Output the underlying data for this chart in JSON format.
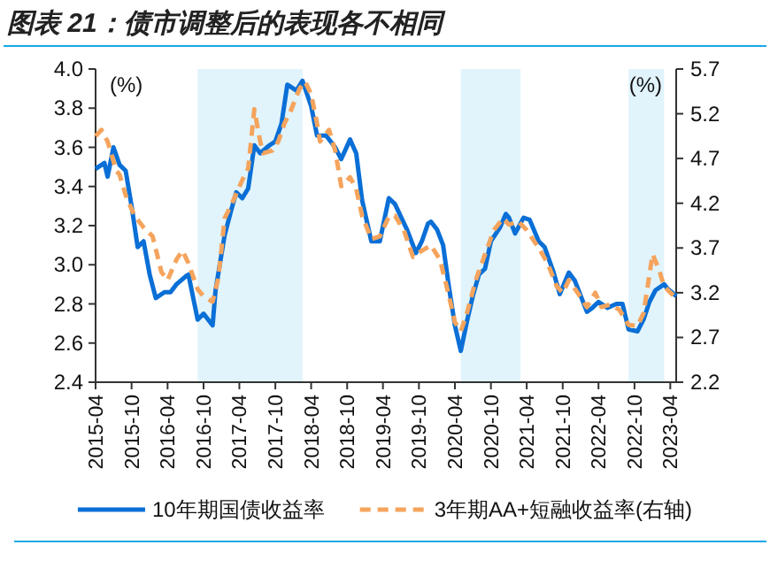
{
  "chart_data": {
    "type": "line",
    "title": "图表 21：债市调整后的表现各不相同",
    "ylabel": "(%)",
    "y2label": "(%)",
    "xlim": [
      "2015-04",
      "2023-05"
    ],
    "xticks": [
      "2015-04",
      "2015-10",
      "2016-04",
      "2016-10",
      "2017-04",
      "2017-10",
      "2018-04",
      "2018-10",
      "2019-04",
      "2019-10",
      "2020-04",
      "2020-10",
      "2021-04",
      "2021-10",
      "2022-04",
      "2022-10",
      "2023-04"
    ],
    "ylim": [
      2.4,
      4.0
    ],
    "yticks": [
      {
        "value": 2.4,
        "label": "2.4"
      },
      {
        "value": 2.6,
        "label": "2.6"
      },
      {
        "value": 2.8,
        "label": "2.8"
      },
      {
        "value": 3.0,
        "label": "3.0"
      },
      {
        "value": 3.2,
        "label": "3.2"
      },
      {
        "value": 3.4,
        "label": "3.4"
      },
      {
        "value": 3.6,
        "label": "3.6"
      },
      {
        "value": 3.8,
        "label": "3.8"
      },
      {
        "value": 4.0,
        "label": "4.0"
      }
    ],
    "y2lim": [
      2.2,
      5.7
    ],
    "y2ticks": [
      2.2,
      2.7,
      3.2,
      3.7,
      4.2,
      4.7,
      5.2,
      5.7
    ],
    "legend": "bottom",
    "grid": false,
    "line_style": "solid",
    "marker": "none",
    "bands": [
      {
        "axis": "x",
        "from": "2016-09-01",
        "to": "2018-02-16",
        "color": "#e1f4fc"
      },
      {
        "axis": "x",
        "from": "2020-05-01",
        "to": "2021-03-01",
        "color": "#e1f4fc"
      },
      {
        "axis": "x",
        "from": "2022-09-01",
        "to": "2023-03-01",
        "color": "#e1f4fc"
      }
    ],
    "series": [
      {
        "name": "10年期国债收益率",
        "color": "#0a6fd6",
        "x": [
          "2015-04-01",
          "2015-05-16",
          "2015-06-01",
          "2015-07-01",
          "2015-08-01",
          "2015-09-01",
          "2015-10-01",
          "2015-11-01",
          "2015-12-01",
          "2016-01-01",
          "2016-02-01",
          "2016-03-16",
          "2016-04-16",
          "2016-05-16",
          "2016-07-01",
          "2016-07-16",
          "2016-09-01",
          "2016-10-01",
          "2016-11-16",
          "2016-12-01",
          "2017-01-16",
          "2017-02-16",
          "2017-03-16",
          "2017-04-16",
          "2017-05-16",
          "2017-06-16",
          "2017-07-16",
          "2017-09-01",
          "2017-10-01",
          "2017-11-01",
          "2017-12-01",
          "2018-01-16",
          "2018-02-16",
          "2018-04-01",
          "2018-05-01",
          "2018-06-16",
          "2018-08-01",
          "2018-09-01",
          "2018-10-16",
          "2018-11-16",
          "2018-12-16",
          "2019-02-01",
          "2019-03-16",
          "2019-05-01",
          "2019-06-01",
          "2019-08-01",
          "2019-09-16",
          "2019-10-16",
          "2019-11-16",
          "2019-12-01",
          "2020-01-01",
          "2020-02-01",
          "2020-03-01",
          "2020-04-01",
          "2020-05-01",
          "2020-06-01",
          "2020-07-01",
          "2020-08-01",
          "2020-09-01",
          "2020-10-01",
          "2020-11-16",
          "2020-12-16",
          "2021-01-01",
          "2021-02-01",
          "2021-03-16",
          "2021-04-16",
          "2021-06-01",
          "2021-07-01",
          "2021-08-16",
          "2021-09-16",
          "2021-11-01",
          "2021-12-01",
          "2022-02-01",
          "2022-03-01",
          "2022-04-01",
          "2022-05-16",
          "2022-07-01",
          "2022-08-01",
          "2022-09-01",
          "2022-10-16",
          "2022-11-16",
          "2022-12-16",
          "2023-01-16",
          "2023-03-01",
          "2023-03-16",
          "2023-05-01"
        ],
        "values": [
          3.49,
          3.52,
          3.45,
          3.6,
          3.51,
          3.48,
          3.3,
          3.09,
          3.12,
          2.95,
          2.83,
          2.86,
          2.86,
          2.9,
          2.94,
          2.95,
          2.72,
          2.75,
          2.69,
          2.87,
          3.15,
          3.27,
          3.37,
          3.34,
          3.39,
          3.61,
          3.57,
          3.61,
          3.63,
          3.72,
          3.92,
          3.89,
          3.94,
          3.81,
          3.66,
          3.66,
          3.6,
          3.54,
          3.64,
          3.57,
          3.33,
          3.12,
          3.12,
          3.34,
          3.31,
          3.18,
          3.06,
          3.12,
          3.21,
          3.22,
          3.18,
          3.1,
          2.89,
          2.69,
          2.56,
          2.71,
          2.84,
          2.95,
          2.98,
          3.12,
          3.19,
          3.26,
          3.24,
          3.16,
          3.24,
          3.23,
          3.12,
          3.09,
          2.96,
          2.85,
          2.96,
          2.92,
          2.76,
          2.78,
          2.81,
          2.78,
          2.8,
          2.8,
          2.67,
          2.66,
          2.72,
          2.81,
          2.87,
          2.9,
          2.88,
          2.84
        ]
      },
      {
        "name": "3年期AA+短融收益率(右轴)",
        "color": "#f5a45d",
        "axis": "y2",
        "line_style": "dashed",
        "x": [
          "2015-04-01",
          "2015-05-01",
          "2015-06-01",
          "2015-07-16",
          "2015-08-01",
          "2015-09-01",
          "2015-10-16",
          "2015-12-01",
          "2016-01-16",
          "2016-03-01",
          "2016-04-01",
          "2016-05-16",
          "2016-06-16",
          "2016-07-16",
          "2016-09-01",
          "2016-10-01",
          "2016-11-16",
          "2016-12-16",
          "2017-01-16",
          "2017-03-01",
          "2017-04-16",
          "2017-05-16",
          "2017-06-16",
          "2017-07-16",
          "2017-08-01",
          "2017-09-16",
          "2017-10-16",
          "2017-11-16",
          "2017-12-16",
          "2018-02-01",
          "2018-03-01",
          "2018-04-01",
          "2018-05-01",
          "2018-05-16",
          "2018-07-01",
          "2018-08-01",
          "2018-09-01",
          "2018-10-16",
          "2018-11-16",
          "2018-12-16",
          "2019-02-01",
          "2019-03-16",
          "2019-05-01",
          "2019-06-01",
          "2019-07-16",
          "2019-09-01",
          "2019-10-16",
          "2019-12-01",
          "2020-01-16",
          "2020-03-01",
          "2020-04-01",
          "2020-05-01",
          "2020-06-01",
          "2020-07-16",
          "2020-09-01",
          "2020-10-16",
          "2020-12-01",
          "2021-01-01",
          "2021-02-16",
          "2021-04-01",
          "2021-06-01",
          "2021-07-16",
          "2021-09-01",
          "2021-10-01",
          "2021-11-01",
          "2021-12-16",
          "2022-02-01",
          "2022-03-16",
          "2022-04-16",
          "2022-06-01",
          "2022-07-16",
          "2022-09-01",
          "2022-10-16",
          "2022-11-16",
          "2023-01-01",
          "2023-02-01",
          "2023-03-01",
          "2023-04-16"
        ],
        "values": [
          4.95,
          5.02,
          4.89,
          4.56,
          4.52,
          4.29,
          4.06,
          3.93,
          3.83,
          3.43,
          3.34,
          3.57,
          3.67,
          3.53,
          3.24,
          3.16,
          3.1,
          3.37,
          4.03,
          4.23,
          4.46,
          4.59,
          5.25,
          4.89,
          4.76,
          4.79,
          4.89,
          5.09,
          5.22,
          5.48,
          5.56,
          5.42,
          5.09,
          4.89,
          5.02,
          4.79,
          4.39,
          4.49,
          4.36,
          4.06,
          3.8,
          3.83,
          4.05,
          4.06,
          3.9,
          3.6,
          3.67,
          3.73,
          3.57,
          3.17,
          2.87,
          2.77,
          2.97,
          3.34,
          3.63,
          3.9,
          4.03,
          3.96,
          4.0,
          3.9,
          3.7,
          3.53,
          3.27,
          3.2,
          3.34,
          3.2,
          3.04,
          3.2,
          3.04,
          3.07,
          3.01,
          2.84,
          2.83,
          2.97,
          3.63,
          3.47,
          3.27,
          3.17
        ]
      }
    ]
  }
}
